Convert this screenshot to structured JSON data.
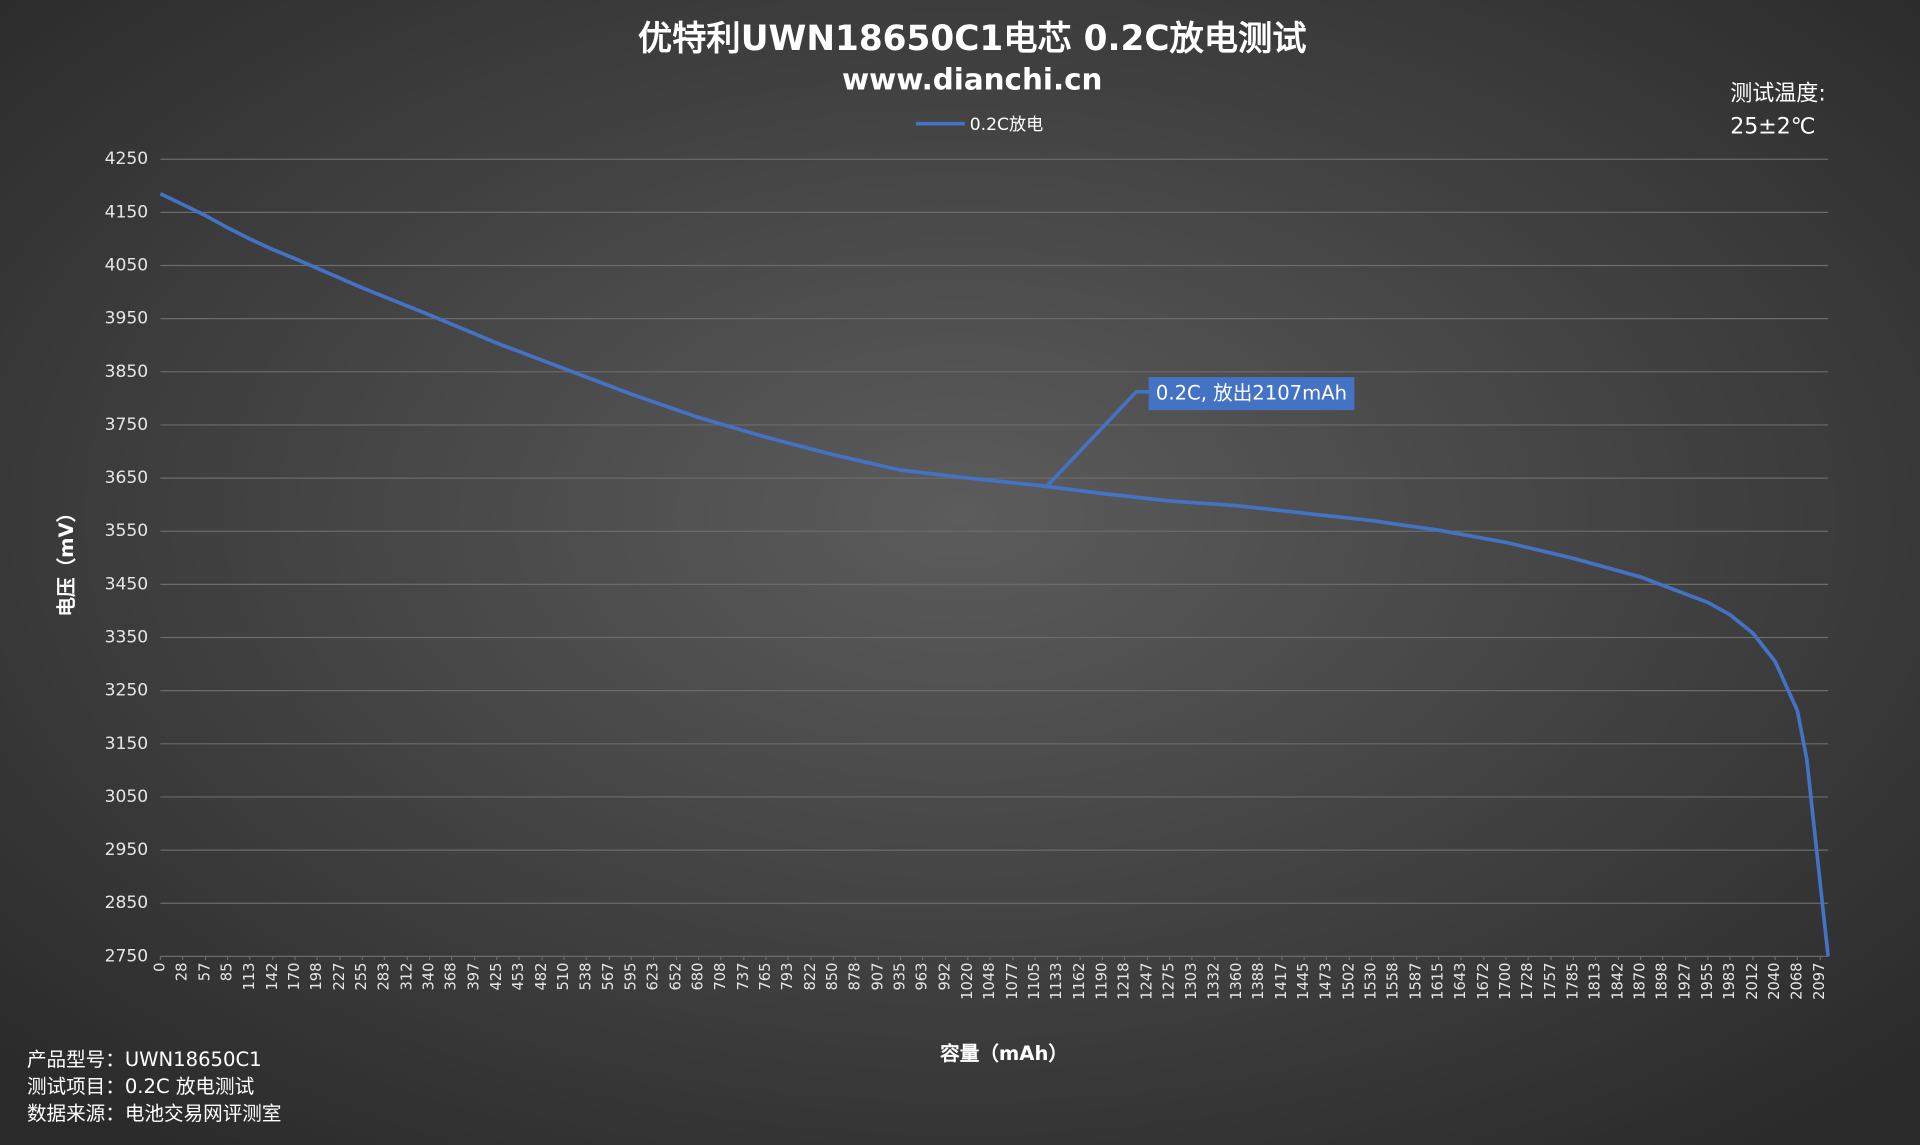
{
  "chart_data": {
    "type": "line",
    "title": "优特利UWN18650C1电芯 0.2C放电测试",
    "subtitle": "www.dianchi.cn",
    "temperature_label": "测试温度:",
    "temperature": "25±2℃",
    "x_label": "容量（mAh）",
    "y_label": "电压（mV）",
    "notes": [
      "产品型号：UWN18650C1",
      "测试项目：0.2C 放电测试",
      "数据来源：电池交易网评测室"
    ],
    "annotation": {
      "text": "0.2C, 放出2107mAh",
      "x": 1120,
      "y": 3635
    },
    "legend": "top",
    "grid": true,
    "xlim": [
      0,
      2107
    ],
    "xticks": [
      0,
      28,
      57,
      85,
      113,
      142,
      170,
      198,
      227,
      255,
      283,
      312,
      340,
      368,
      397,
      425,
      453,
      482,
      510,
      538,
      567,
      595,
      623,
      652,
      680,
      708,
      737,
      765,
      793,
      822,
      850,
      878,
      907,
      935,
      963,
      992,
      1020,
      1048,
      1077,
      1105,
      1133,
      1162,
      1190,
      1218,
      1247,
      1275,
      1303,
      1332,
      1360,
      1388,
      1417,
      1445,
      1473,
      1502,
      1530,
      1558,
      1587,
      1615,
      1643,
      1672,
      1700,
      1728,
      1757,
      1785,
      1813,
      1842,
      1870,
      1898,
      1927,
      1955,
      1983,
      2012,
      2040,
      2068,
      2097
    ],
    "ylim": [
      2750,
      4250
    ],
    "yticks": [
      2750,
      2850,
      2950,
      3050,
      3150,
      3250,
      3350,
      3450,
      3550,
      3650,
      3750,
      3850,
      3950,
      4050,
      4150,
      4250
    ],
    "x": [
      0,
      28,
      57,
      85,
      113,
      142,
      170,
      198,
      255,
      340,
      425,
      510,
      595,
      680,
      765,
      850,
      935,
      1020,
      1105,
      1190,
      1275,
      1360,
      1445,
      1530,
      1615,
      1700,
      1785,
      1870,
      1955,
      1983,
      2012,
      2040,
      2068,
      2080,
      2090,
      2100,
      2107
    ],
    "series": [
      {
        "name": "0.2C放电",
        "color": "#4472c4",
        "values": [
          4185,
          4165,
          4144,
          4121,
          4100,
          4080,
          4063,
          4045,
          4008,
          3957,
          3904,
          3856,
          3808,
          3764,
          3727,
          3694,
          3665,
          3650,
          3637,
          3621,
          3607,
          3598,
          3584,
          3570,
          3552,
          3529,
          3499,
          3464,
          3416,
          3393,
          3358,
          3305,
          3213,
          3121,
          2983,
          2845,
          2750
        ]
      }
    ]
  }
}
